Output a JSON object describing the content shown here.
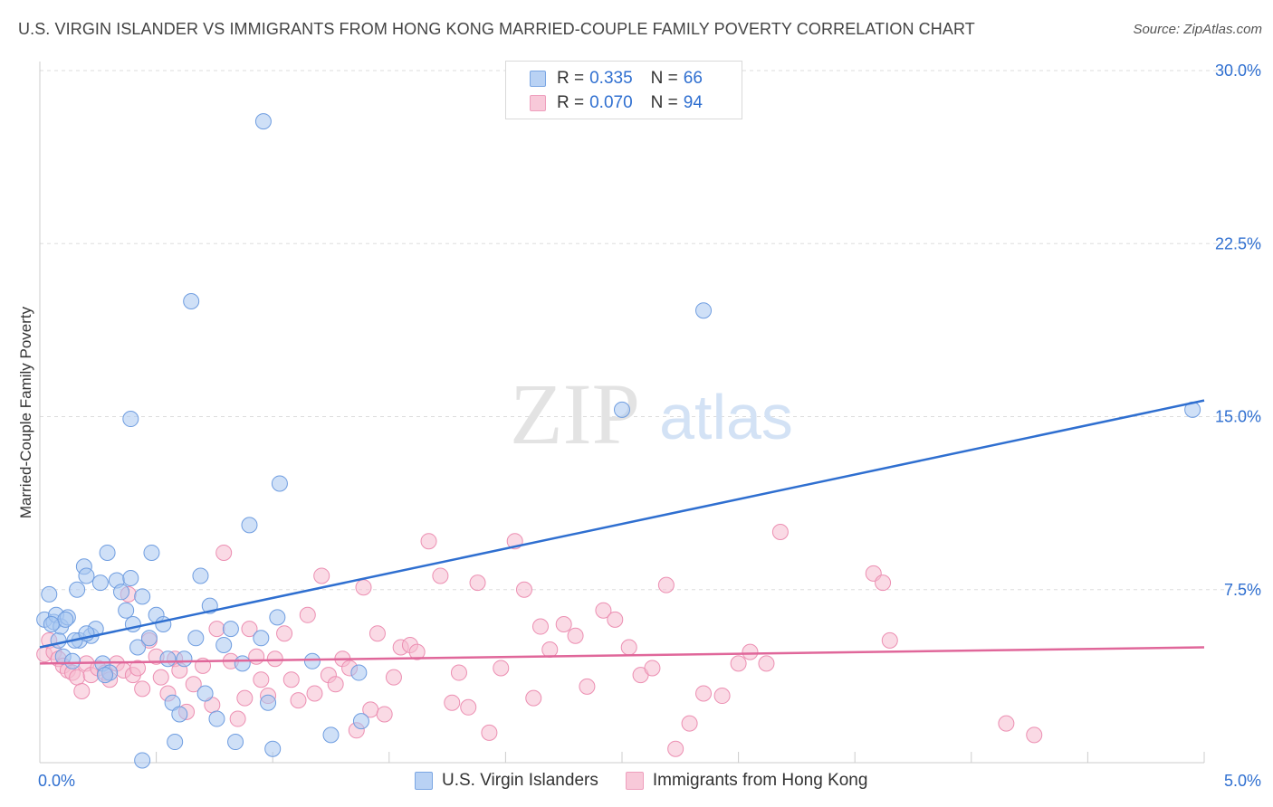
{
  "title": "U.S. VIRGIN ISLANDER VS IMMIGRANTS FROM HONG KONG MARRIED-COUPLE FAMILY POVERTY CORRELATION CHART",
  "source": "Source: ZipAtlas.com",
  "watermark": {
    "zip": "ZIP",
    "atlas": "atlas"
  },
  "legend": {
    "series1": {
      "r_label": "R =",
      "r_value": "0.335",
      "n_label": "N =",
      "n_value": "66"
    },
    "series2": {
      "r_label": "R =",
      "r_value": "0.070",
      "n_label": "N =",
      "n_value": "94"
    }
  },
  "colors": {
    "blue": "#2f6fd0",
    "blue_fill": "#a8c6f0",
    "blue_stroke": "#6f9de0",
    "pink": "#e0679a",
    "pink_fill": "#f6bcd0",
    "pink_stroke": "#ec8fb2",
    "tick_text": "#2f6fd0",
    "grid": "#dddddd"
  },
  "chart_data": {
    "type": "scatter",
    "title": "U.S. VIRGIN ISLANDER VS IMMIGRANTS FROM HONG KONG MARRIED-COUPLE FAMILY POVERTY CORRELATION CHART",
    "xlabel": "",
    "ylabel": "Married-Couple Family Poverty",
    "xlim": [
      0,
      5
    ],
    "ylim": [
      0,
      30
    ],
    "x_tick_labels": [
      "0.0%",
      "5.0%"
    ],
    "y_ticks": [
      7.5,
      15.0,
      22.5,
      30.0
    ],
    "y_tick_labels": [
      "7.5%",
      "15.0%",
      "22.5%",
      "30.0%"
    ],
    "grid": true,
    "legend_position": "top-center",
    "series": [
      {
        "name": "U.S. Virgin Islanders",
        "color": "#2f6fd0",
        "trend": {
          "x": [
            0,
            5
          ],
          "y": [
            5.0,
            15.7
          ]
        },
        "points": [
          [
            0.02,
            6.2
          ],
          [
            0.04,
            7.3
          ],
          [
            0.06,
            6.1
          ],
          [
            0.07,
            6.4
          ],
          [
            0.08,
            5.3
          ],
          [
            0.09,
            5.9
          ],
          [
            0.1,
            4.6
          ],
          [
            0.12,
            6.3
          ],
          [
            0.14,
            4.4
          ],
          [
            0.16,
            7.5
          ],
          [
            0.17,
            5.3
          ],
          [
            0.19,
            8.5
          ],
          [
            0.2,
            8.1
          ],
          [
            0.22,
            5.5
          ],
          [
            0.24,
            5.8
          ],
          [
            0.26,
            7.8
          ],
          [
            0.27,
            4.3
          ],
          [
            0.29,
            9.1
          ],
          [
            0.3,
            3.9
          ],
          [
            0.33,
            7.9
          ],
          [
            0.35,
            7.4
          ],
          [
            0.37,
            6.6
          ],
          [
            0.39,
            8.0
          ],
          [
            0.4,
            6.0
          ],
          [
            0.42,
            5.0
          ],
          [
            0.44,
            7.2
          ],
          [
            0.47,
            5.4
          ],
          [
            0.48,
            9.1
          ],
          [
            0.5,
            6.4
          ],
          [
            0.53,
            6.0
          ],
          [
            0.55,
            4.5
          ],
          [
            0.57,
            2.6
          ],
          [
            0.6,
            2.1
          ],
          [
            0.62,
            4.5
          ],
          [
            0.65,
            20.0
          ],
          [
            0.67,
            5.4
          ],
          [
            0.69,
            8.1
          ],
          [
            0.71,
            3.0
          ],
          [
            0.73,
            6.8
          ],
          [
            0.76,
            1.9
          ],
          [
            0.79,
            5.1
          ],
          [
            0.82,
            5.8
          ],
          [
            0.84,
            0.9
          ],
          [
            0.87,
            4.3
          ],
          [
            0.9,
            10.3
          ],
          [
            0.95,
            5.4
          ],
          [
            0.98,
            2.6
          ],
          [
            1.0,
            0.6
          ],
          [
            1.02,
            6.3
          ],
          [
            1.03,
            12.1
          ],
          [
            1.17,
            4.4
          ],
          [
            1.25,
            1.2
          ],
          [
            1.37,
            3.9
          ],
          [
            1.38,
            1.8
          ],
          [
            0.39,
            14.9
          ],
          [
            0.44,
            0.1
          ],
          [
            0.28,
            3.8
          ],
          [
            0.96,
            27.8
          ],
          [
            2.5,
            15.3
          ],
          [
            2.85,
            19.6
          ],
          [
            4.95,
            15.3
          ],
          [
            0.58,
            0.9
          ],
          [
            0.15,
            5.3
          ],
          [
            0.11,
            6.2
          ],
          [
            0.2,
            5.6
          ],
          [
            0.05,
            6.0
          ]
        ]
      },
      {
        "name": "Immigrants from Hong Kong",
        "color": "#e0679a",
        "trend": {
          "x": [
            0,
            5
          ],
          "y": [
            4.3,
            5.0
          ]
        },
        "points": [
          [
            0.02,
            4.7
          ],
          [
            0.04,
            5.3
          ],
          [
            0.06,
            4.8
          ],
          [
            0.08,
            4.5
          ],
          [
            0.1,
            4.2
          ],
          [
            0.12,
            4.0
          ],
          [
            0.14,
            3.9
          ],
          [
            0.16,
            3.7
          ],
          [
            0.18,
            3.1
          ],
          [
            0.2,
            4.3
          ],
          [
            0.22,
            3.8
          ],
          [
            0.25,
            4.1
          ],
          [
            0.28,
            3.9
          ],
          [
            0.3,
            3.6
          ],
          [
            0.33,
            4.3
          ],
          [
            0.36,
            4.0
          ],
          [
            0.38,
            7.3
          ],
          [
            0.4,
            3.8
          ],
          [
            0.42,
            4.1
          ],
          [
            0.44,
            3.2
          ],
          [
            0.47,
            5.3
          ],
          [
            0.5,
            4.6
          ],
          [
            0.52,
            3.7
          ],
          [
            0.55,
            3.0
          ],
          [
            0.58,
            4.5
          ],
          [
            0.6,
            4.0
          ],
          [
            0.63,
            2.2
          ],
          [
            0.66,
            3.4
          ],
          [
            0.7,
            4.2
          ],
          [
            0.74,
            2.5
          ],
          [
            0.76,
            5.8
          ],
          [
            0.79,
            9.1
          ],
          [
            0.82,
            4.4
          ],
          [
            0.85,
            1.9
          ],
          [
            0.88,
            2.8
          ],
          [
            0.9,
            5.8
          ],
          [
            0.93,
            4.6
          ],
          [
            0.95,
            3.6
          ],
          [
            0.98,
            2.9
          ],
          [
            1.01,
            4.5
          ],
          [
            1.05,
            5.6
          ],
          [
            1.08,
            3.6
          ],
          [
            1.11,
            2.7
          ],
          [
            1.15,
            6.4
          ],
          [
            1.18,
            3.0
          ],
          [
            1.21,
            8.1
          ],
          [
            1.24,
            3.8
          ],
          [
            1.27,
            3.4
          ],
          [
            1.3,
            4.5
          ],
          [
            1.33,
            4.1
          ],
          [
            1.36,
            1.4
          ],
          [
            1.39,
            7.6
          ],
          [
            1.42,
            2.3
          ],
          [
            1.45,
            5.6
          ],
          [
            1.48,
            2.1
          ],
          [
            1.52,
            3.7
          ],
          [
            1.55,
            5.0
          ],
          [
            1.59,
            5.1
          ],
          [
            1.62,
            4.8
          ],
          [
            1.67,
            9.6
          ],
          [
            1.72,
            8.1
          ],
          [
            1.77,
            2.6
          ],
          [
            1.8,
            3.9
          ],
          [
            1.84,
            2.4
          ],
          [
            1.88,
            7.8
          ],
          [
            1.93,
            1.3
          ],
          [
            1.98,
            4.1
          ],
          [
            2.04,
            9.6
          ],
          [
            2.08,
            7.5
          ],
          [
            2.12,
            2.8
          ],
          [
            2.15,
            5.9
          ],
          [
            2.19,
            4.9
          ],
          [
            2.25,
            6.0
          ],
          [
            2.3,
            5.5
          ],
          [
            2.35,
            3.3
          ],
          [
            2.42,
            6.6
          ],
          [
            2.47,
            6.2
          ],
          [
            2.53,
            5.0
          ],
          [
            2.58,
            3.8
          ],
          [
            2.63,
            4.1
          ],
          [
            2.69,
            7.7
          ],
          [
            2.73,
            0.6
          ],
          [
            2.79,
            1.7
          ],
          [
            2.85,
            3.0
          ],
          [
            2.93,
            2.9
          ],
          [
            3.0,
            4.3
          ],
          [
            3.05,
            4.8
          ],
          [
            3.12,
            4.3
          ],
          [
            3.18,
            10.0
          ],
          [
            3.58,
            8.2
          ],
          [
            3.62,
            7.8
          ],
          [
            3.65,
            5.3
          ],
          [
            4.15,
            1.7
          ],
          [
            4.27,
            1.2
          ]
        ]
      }
    ]
  },
  "bottom_legend": {
    "series1": "U.S. Virgin Islanders",
    "series2": "Immigrants from Hong Kong"
  }
}
